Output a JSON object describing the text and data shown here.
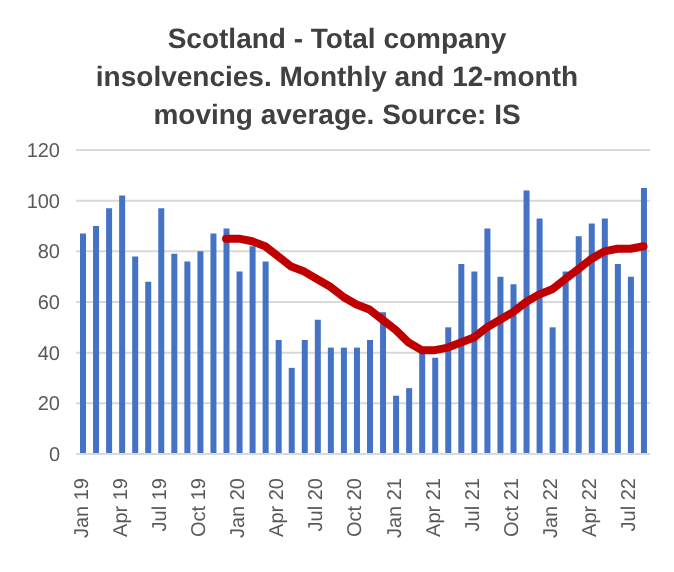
{
  "chart_data": {
    "type": "bar",
    "title": "Scotland - Total company insolvencies. Monthly and 12-month moving average. Source: IS",
    "categories": [
      "Jan 19",
      null,
      null,
      "Apr 19",
      null,
      null,
      "Jul 19",
      null,
      null,
      "Oct 19",
      null,
      null,
      "Jan 20",
      null,
      null,
      "Apr 20",
      null,
      null,
      "Jul 20",
      null,
      null,
      "Oct 20",
      null,
      null,
      "Jan 21",
      null,
      null,
      "Apr 21",
      null,
      null,
      "Jul 21",
      null,
      null,
      "Oct 21",
      null,
      null,
      "Jan 22",
      null,
      null,
      "Apr 22",
      null,
      null,
      "Jul 22",
      null
    ],
    "series": [
      {
        "color": "#4472c4",
        "values": [
          87,
          90,
          97,
          102,
          78,
          68,
          97,
          79,
          76,
          80,
          87,
          89,
          72,
          82,
          76,
          45,
          34,
          45,
          53,
          42,
          42,
          42,
          45,
          56,
          23,
          26,
          40,
          38,
          50,
          75,
          72,
          89,
          70,
          67,
          104,
          93,
          50,
          72,
          86,
          91,
          93,
          75,
          70,
          105
        ]
      },
      {
        "type": "line",
        "color": "#c00000",
        "values": [
          null,
          null,
          null,
          null,
          null,
          null,
          null,
          null,
          null,
          null,
          null,
          85,
          85,
          84,
          82,
          78,
          74,
          72,
          69,
          66,
          62,
          59,
          57,
          53,
          49,
          44,
          41,
          41,
          42,
          44,
          46,
          50,
          53,
          56,
          60,
          63,
          65,
          69,
          73,
          77,
          80,
          81,
          81,
          82
        ]
      }
    ],
    "ylim": [
      0,
      120
    ],
    "yticks": [
      0,
      20,
      40,
      60,
      80,
      100,
      120
    ],
    "grid": "y",
    "legend": false
  }
}
